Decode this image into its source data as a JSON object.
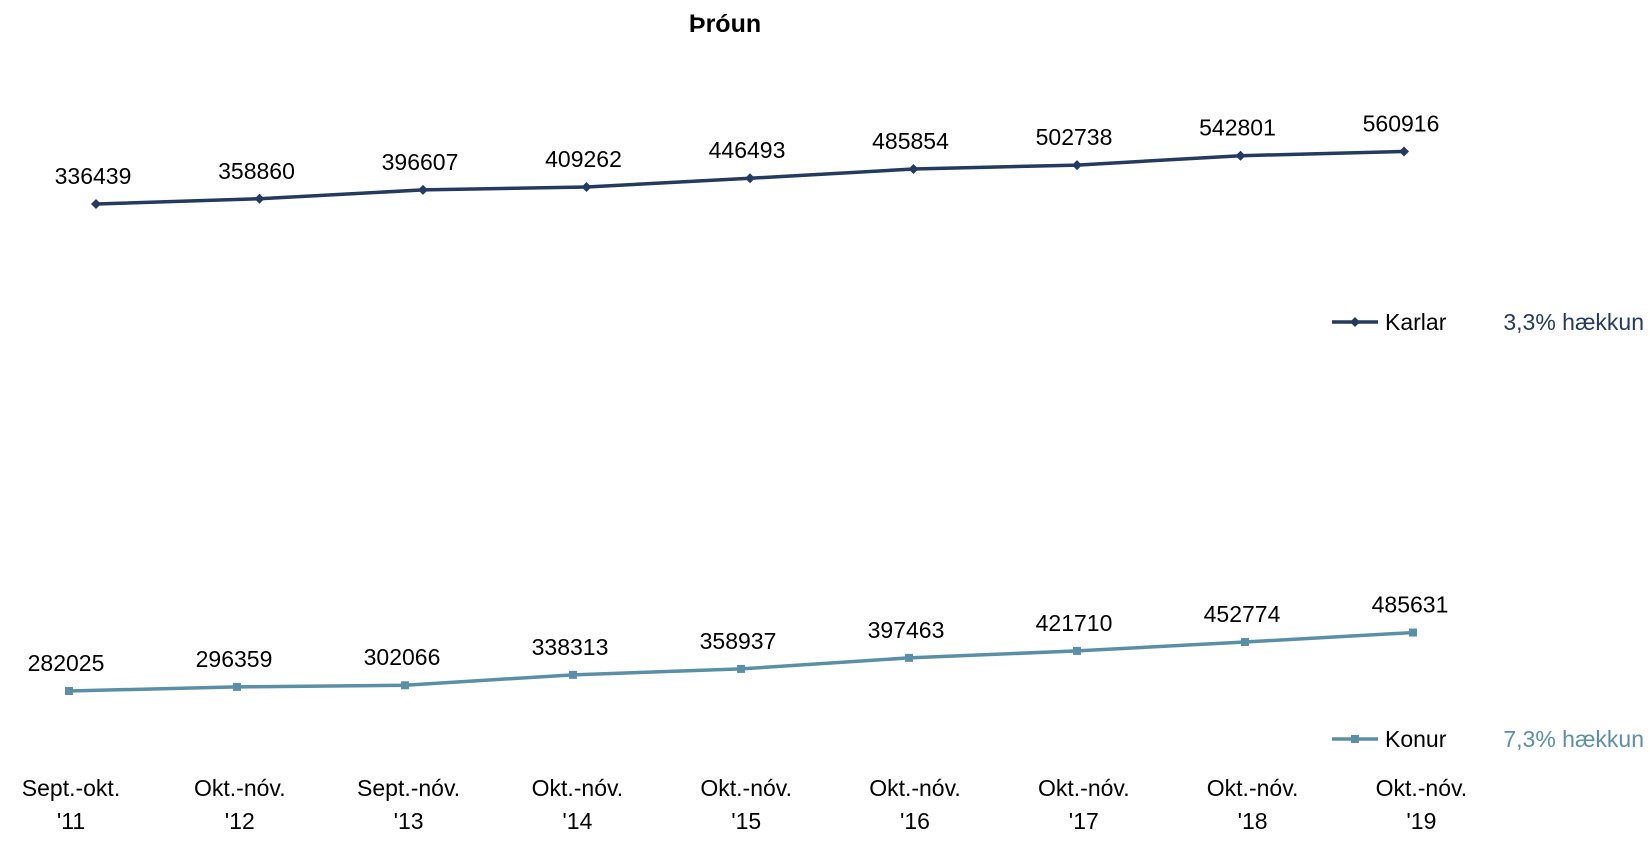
{
  "chart_data": {
    "type": "line",
    "title": "Þróun",
    "xlabel": "",
    "ylabel": "",
    "categories": [
      [
        "Sept.-okt.",
        "'11"
      ],
      [
        "Okt.-nóv.",
        "'12"
      ],
      [
        "Sept.-nóv.",
        "'13"
      ],
      [
        "Okt.-nóv.",
        "'14"
      ],
      [
        "Okt.-nóv.",
        "'15"
      ],
      [
        "Okt.-nóv.",
        "'16"
      ],
      [
        "Okt.-nóv.",
        "'17"
      ],
      [
        "Okt.-nóv.",
        "'18"
      ],
      [
        "Okt.-nóv.",
        "'19"
      ]
    ],
    "series": [
      {
        "name": "Karlar",
        "note": "3,3% hækkun",
        "color": "#243a5e",
        "marker": "diamond",
        "values": [
          336439,
          358860,
          396607,
          409262,
          446493,
          485854,
          502738,
          542801,
          560916
        ]
      },
      {
        "name": "Konur",
        "note": "7,3% hækkun",
        "color": "#5b8fa8",
        "marker": "square",
        "values": [
          282025,
          296359,
          302066,
          338313,
          358937,
          397463,
          421710,
          452774,
          485631
        ]
      }
    ],
    "grid": false,
    "legend_position": "right"
  }
}
